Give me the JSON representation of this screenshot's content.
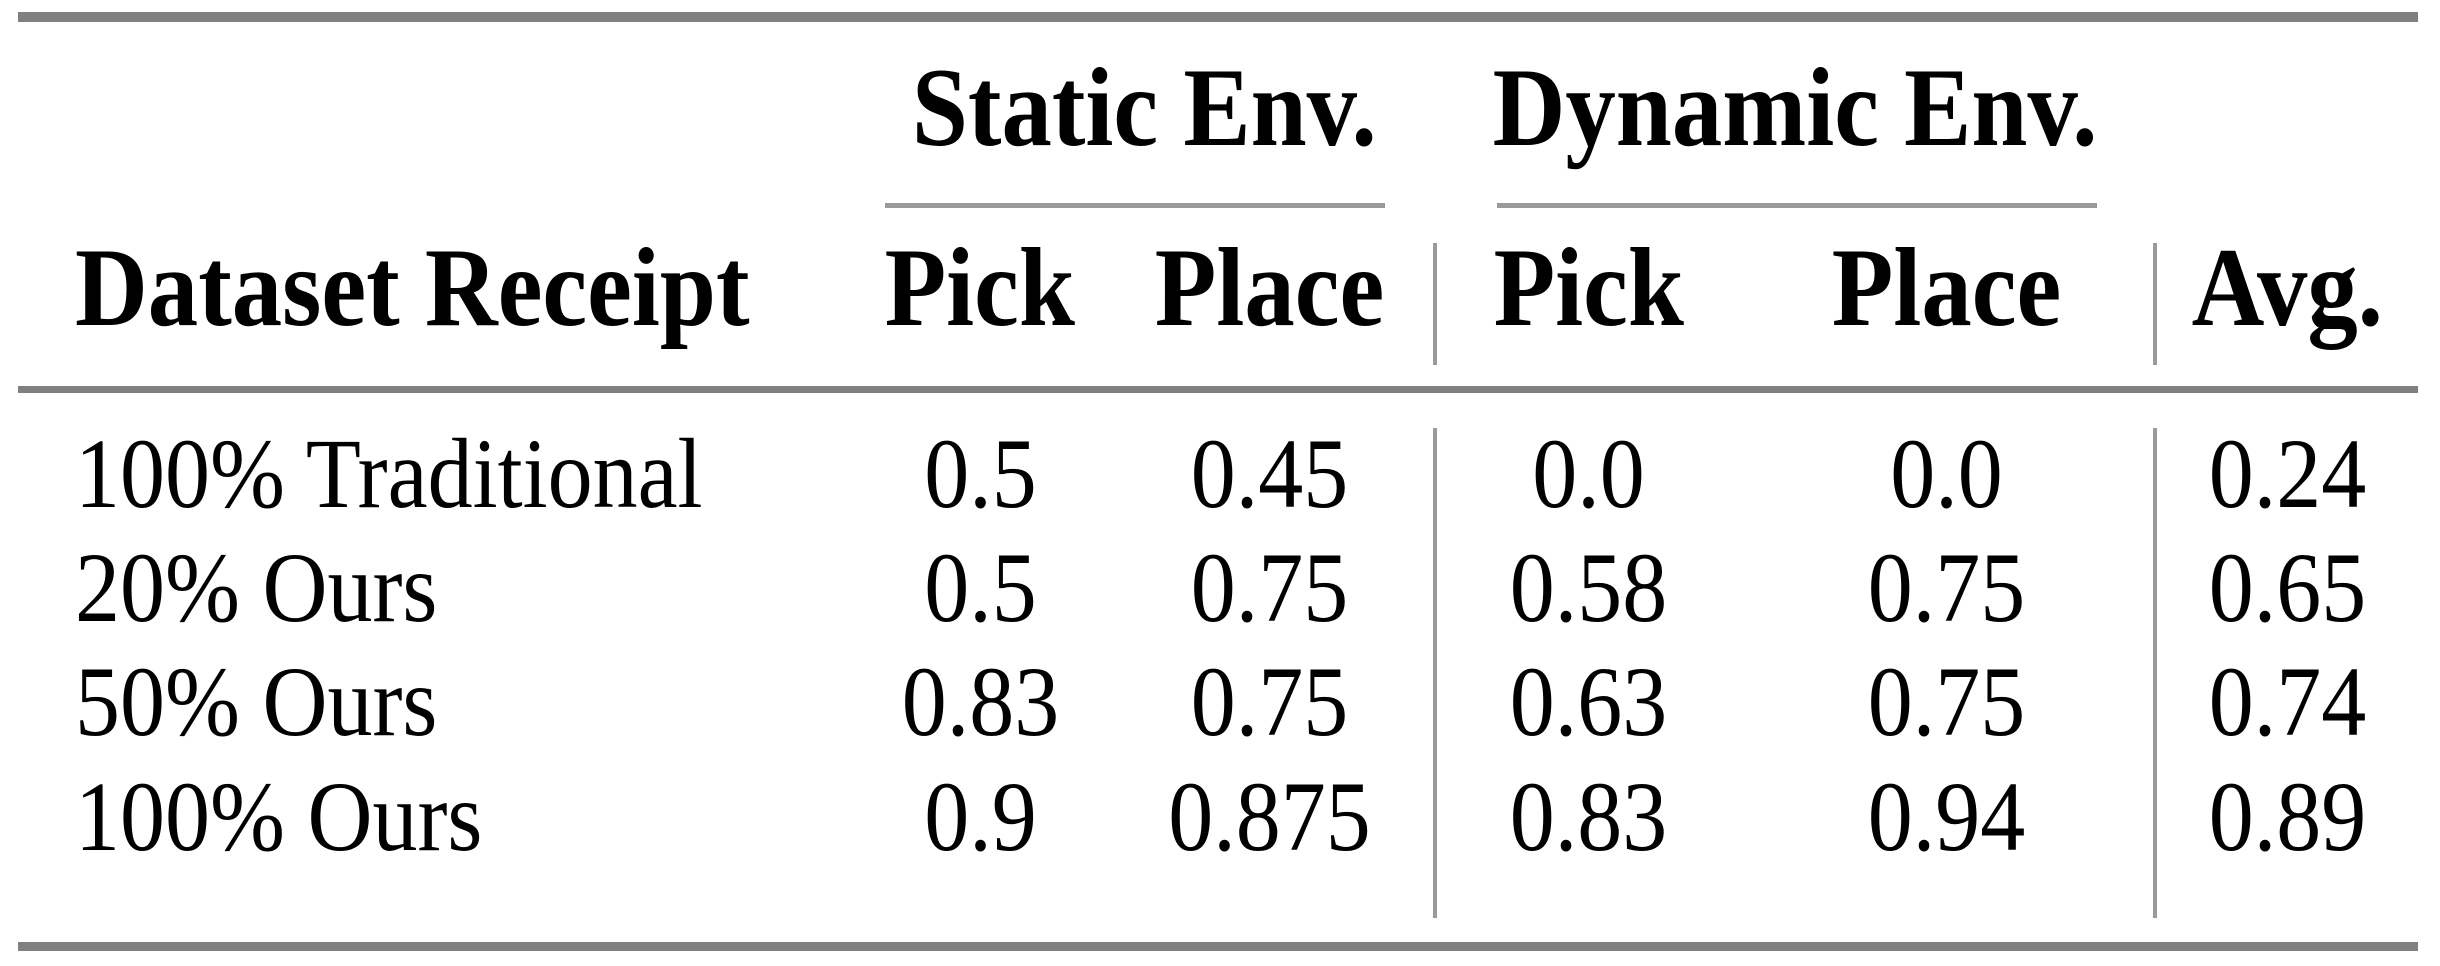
{
  "table": {
    "groups": [
      {
        "label": "Static Env."
      },
      {
        "label": "Dynamic Env."
      }
    ],
    "headers": {
      "dataset": "Dataset Receipt",
      "static_pick": "Pick",
      "static_place": "Place",
      "dynamic_pick": "Pick",
      "dynamic_place": "Place",
      "avg": "Avg."
    },
    "rows": [
      {
        "label": "100% Traditional",
        "static_pick": "0.5",
        "static_place": "0.45",
        "dynamic_pick": "0.0",
        "dynamic_place": "0.0",
        "avg": "0.24"
      },
      {
        "label": "20% Ours",
        "static_pick": "0.5",
        "static_place": "0.75",
        "dynamic_pick": "0.58",
        "dynamic_place": "0.75",
        "avg": "0.65"
      },
      {
        "label": "50% Ours",
        "static_pick": "0.83",
        "static_place": "0.75",
        "dynamic_pick": "0.63",
        "dynamic_place": "0.75",
        "avg": "0.74"
      },
      {
        "label": "100% Ours",
        "static_pick": "0.9",
        "static_place": "0.875",
        "dynamic_pick": "0.83",
        "dynamic_place": "0.94",
        "avg": "0.89"
      }
    ],
    "colors": {
      "rule_heavy": "#808080",
      "rule_light": "#9a9a9a",
      "text": "#000000",
      "background": "#ffffff"
    }
  }
}
